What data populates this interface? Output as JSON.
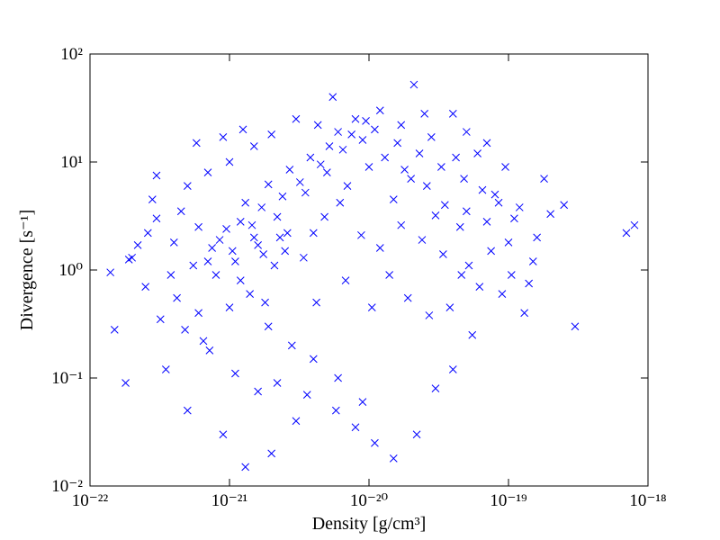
{
  "chart_data": {
    "type": "scatter",
    "x_label": "Density [g/cm³]",
    "y_label": "Divergence [s⁻¹]",
    "xscale": "log",
    "yscale": "log",
    "marker": "x",
    "color": "#0000ff",
    "xlim": [
      1e-22,
      1e-18
    ],
    "ylim": [
      0.01,
      100
    ],
    "xticks": [
      {
        "value": 1e-22,
        "label": "10⁻²²"
      },
      {
        "value": 1e-21,
        "label": "10⁻²¹"
      },
      {
        "value": 1e-20,
        "label": "10⁻²⁰"
      },
      {
        "value": 1e-19,
        "label": "10⁻¹⁹"
      },
      {
        "value": 1e-18,
        "label": "10⁻¹⁸"
      }
    ],
    "yticks": [
      {
        "value": 0.01,
        "label": "10⁻²"
      },
      {
        "value": 0.1,
        "label": "10⁻¹"
      },
      {
        "value": 1,
        "label": "10⁰"
      },
      {
        "value": 10,
        "label": "10¹"
      },
      {
        "value": 100,
        "label": "10²"
      }
    ],
    "x": [
      1.5e-21,
      2.2e-21,
      1.1e-21,
      8e-22,
      3.5e-21,
      5e-21,
      6e-22,
      1.8e-21,
      2.5e-21,
      4e-21,
      7e-21,
      1e-20,
      1.5e-20,
      2e-20,
      3e-20,
      4.5e-20,
      6e-20,
      8e-20,
      4e-22,
      3e-22,
      2.5e-22,
      2e-22,
      1.5e-22,
      1.8e-22,
      3.5e-22,
      5e-22,
      9e-22,
      1.3e-21,
      2e-21,
      3e-21,
      5.5e-21,
      2.1e-20,
      1.2e-20,
      8e-21,
      2.5e-20,
      4e-20,
      3e-21,
      2e-21,
      1.5e-21,
      1e-21,
      7e-22,
      5e-22,
      3e-22,
      2.8e-22,
      4.5e-22,
      6e-22,
      7.5e-22,
      1.2e-21,
      1.7e-21,
      2.4e-21,
      3.2e-21,
      4.5e-21,
      6.5e-21,
      9e-21,
      1.3e-20,
      1.8e-20,
      2.6e-20,
      3.5e-20,
      5e-20,
      7e-20,
      1e-19,
      1.2e-19,
      1.5e-19,
      2e-19,
      7e-19,
      8e-19,
      3e-19,
      1.3e-19,
      9e-20,
      5.5e-20,
      4e-20,
      3e-20,
      2.2e-20,
      1.5e-20,
      9e-21,
      6e-21,
      4e-21,
      2.8e-21,
      1.9e-21,
      1.4e-21,
      1e-21,
      6.5e-22,
      4.2e-22,
      5.5e-22,
      8.5e-22,
      1.3e-21,
      1.9e-21,
      2.7e-21,
      3.8e-21,
      5.2e-21,
      7.5e-21,
      1.1e-20,
      1.6e-20,
      2.3e-20,
      3.3e-20,
      4.8e-20,
      6.5e-20,
      8.5e-20,
      1.1e-19,
      1.6e-19,
      2.5e-19,
      1.8e-19,
      9.5e-20,
      7e-20,
      5e-20,
      4.2e-20,
      2.8e-20,
      1.7e-20,
      9.5e-21,
      6e-21,
      2.1e-21,
      2.6e-21,
      1.6e-21,
      1.2e-21,
      3.4e-21,
      4.8e-21,
      6.2e-21,
      8.8e-21,
      1.2e-20,
      1.7e-20,
      2.4e-20,
      3.4e-20,
      4.6e-20,
      6.2e-20,
      9.5e-22,
      1.45e-21,
      2.3e-21,
      1.75e-21,
      1.05e-21,
      7e-22,
      3.8e-22,
      2.6e-22,
      2.2e-22,
      1.9e-22,
      1.4e-22,
      3.2e-22,
      4.8e-22,
      7.2e-22,
      1.1e-21,
      1.6e-21,
      2.2e-21,
      3.6e-21,
      5.8e-21,
      8e-21,
      1.1e-20,
      4.2e-21,
      6.8e-21,
      1.05e-20,
      1.4e-20,
      1.9e-20,
      2.7e-20,
      3.8e-20,
      5.2e-20,
      7.5e-20,
      1.05e-19,
      1.4e-19,
      5.8e-22,
      9e-22,
      1.25e-21,
      4.3e-21
    ],
    "values": [
      2.0,
      3.1,
      1.2,
      0.9,
      5.2,
      8.0,
      0.4,
      0.5,
      1.5,
      2.2,
      6.0,
      9.0,
      4.5,
      7.0,
      3.2,
      2.5,
      12,
      5.0,
      1.8,
      3.0,
      0.7,
      1.3,
      0.28,
      0.09,
      0.12,
      0.05,
      0.03,
      0.015,
      0.02,
      0.04,
      40,
      52,
      30,
      25,
      28,
      28,
      25,
      18,
      14,
      10,
      8,
      6,
      7.5,
      4.5,
      3.5,
      2.5,
      1.6,
      2.8,
      3.8,
      4.8,
      6.5,
      9.5,
      13,
      16,
      11,
      8.5,
      6,
      4,
      3.5,
      2.8,
      1.8,
      3.8,
      1.2,
      3.3,
      2.2,
      2.6,
      0.3,
      0.4,
      0.6,
      0.25,
      0.12,
      0.08,
      0.03,
      0.018,
      0.06,
      0.1,
      0.15,
      0.2,
      0.3,
      0.6,
      0.45,
      0.22,
      0.55,
      1.1,
      1.9,
      4.2,
      6.2,
      8.5,
      11,
      14,
      18,
      20,
      15,
      12,
      9,
      7,
      5.5,
      4.2,
      3,
      2,
      4,
      7,
      9,
      15,
      19,
      11,
      17,
      22,
      24,
      19,
      1.1,
      2.2,
      1.7,
      0.8,
      1.3,
      3.1,
      4.2,
      2.1,
      1.6,
      2.6,
      1.9,
      1.4,
      0.9,
      0.7,
      2.4,
      2.6,
      2.0,
      1.4,
      1.5,
      1.2,
      0.9,
      2.2,
      1.7,
      1.25,
      0.95,
      0.35,
      0.28,
      0.18,
      0.11,
      0.075,
      0.09,
      0.07,
      0.05,
      0.035,
      0.025,
      0.5,
      0.8,
      0.45,
      0.9,
      0.55,
      0.38,
      0.45,
      1.1,
      1.5,
      0.9,
      0.75,
      15,
      17,
      20,
      22
    ]
  }
}
